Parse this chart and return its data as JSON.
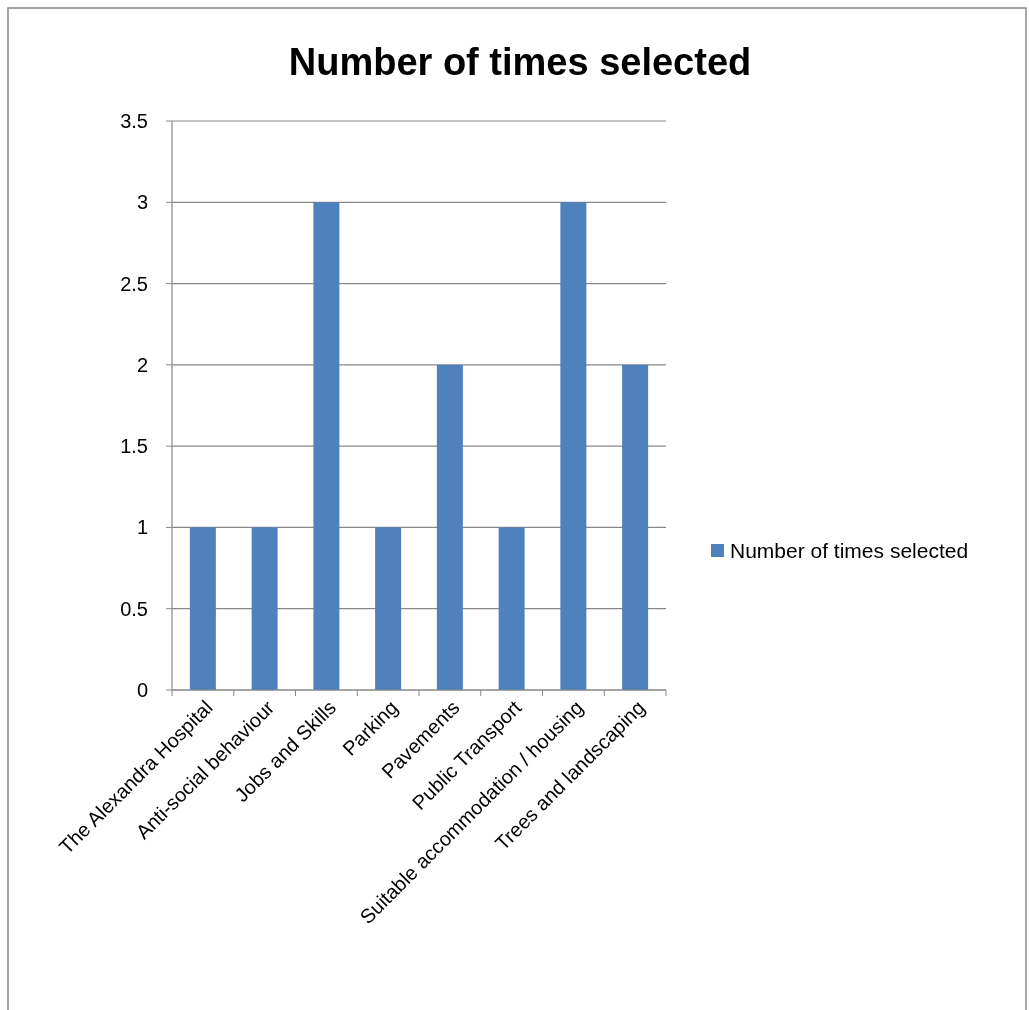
{
  "chart_data": {
    "type": "bar",
    "title": "Number of times selected",
    "categories": [
      "The Alexandra Hospital",
      "Anti-social behaviour",
      "Jobs and Skills",
      "Parking",
      "Pavements",
      "Public Transport",
      "Suitable accommodation / housing",
      "Trees and landscaping"
    ],
    "series": [
      {
        "name": "Number of times selected",
        "color": "#4f81bd",
        "values": [
          1,
          1,
          3,
          1,
          2,
          1,
          3,
          2
        ]
      }
    ],
    "ylim": [
      0,
      3.5
    ],
    "yticks": [
      0,
      0.5,
      1,
      1.5,
      2,
      2.5,
      3,
      3.5
    ],
    "grid": "y",
    "legend": "right"
  }
}
